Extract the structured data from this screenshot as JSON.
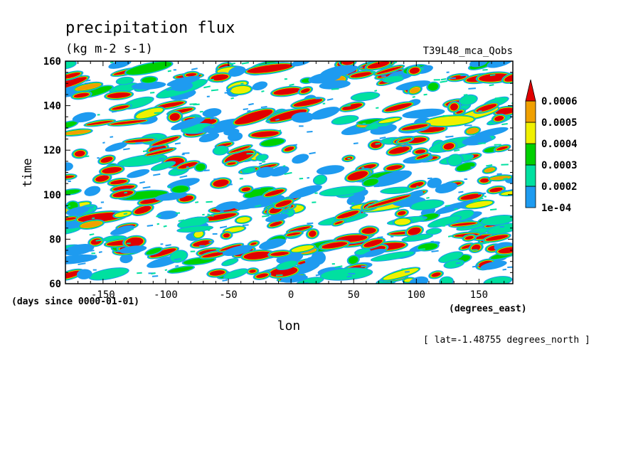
{
  "chart_data": {
    "type": "heatmap",
    "title": "precipitation flux",
    "subtitle": "(kg m-2 s-1)",
    "dataset_label": "T39L48_mca_Qobs",
    "xlabel": "lon",
    "ylabel": "time",
    "x_units": "(degrees_east)",
    "y_units": "(days since 0000-01-01)",
    "annotation": "[ lat=-1.48755 degrees_north ]",
    "xlim": [
      -180,
      177
    ],
    "ylim": [
      60,
      160
    ],
    "x_ticks": [
      -150,
      -100,
      -50,
      0,
      50,
      100,
      150
    ],
    "x_tick_labels": [
      "-150",
      "-100",
      "-50",
      "0",
      "50",
      "100",
      "150"
    ],
    "y_ticks": [
      60,
      80,
      100,
      120,
      140,
      160
    ],
    "y_tick_labels": [
      "60",
      "80",
      "100",
      "120",
      "140",
      "160"
    ],
    "grid": false,
    "legend": {
      "placement": "right",
      "levels": [
        0.0001,
        0.0002,
        0.0003,
        0.0004,
        0.0005,
        0.0006
      ],
      "level_labels": [
        "1e-04",
        "0.0002",
        "0.0003",
        "0.0004",
        "0.0005",
        "0.0006"
      ],
      "colors": [
        "#1e9bf0",
        "#00e0a0",
        "#00d000",
        "#f0f000",
        "#f0a000",
        "#e00000"
      ]
    },
    "contour_fill_palette": {
      "light_blue": "#1e9bf0",
      "teal": "#00e0a0",
      "green": "#00d000",
      "yellow": "#f0f000",
      "orange": "#f0a000",
      "red": "#e00000"
    }
  }
}
